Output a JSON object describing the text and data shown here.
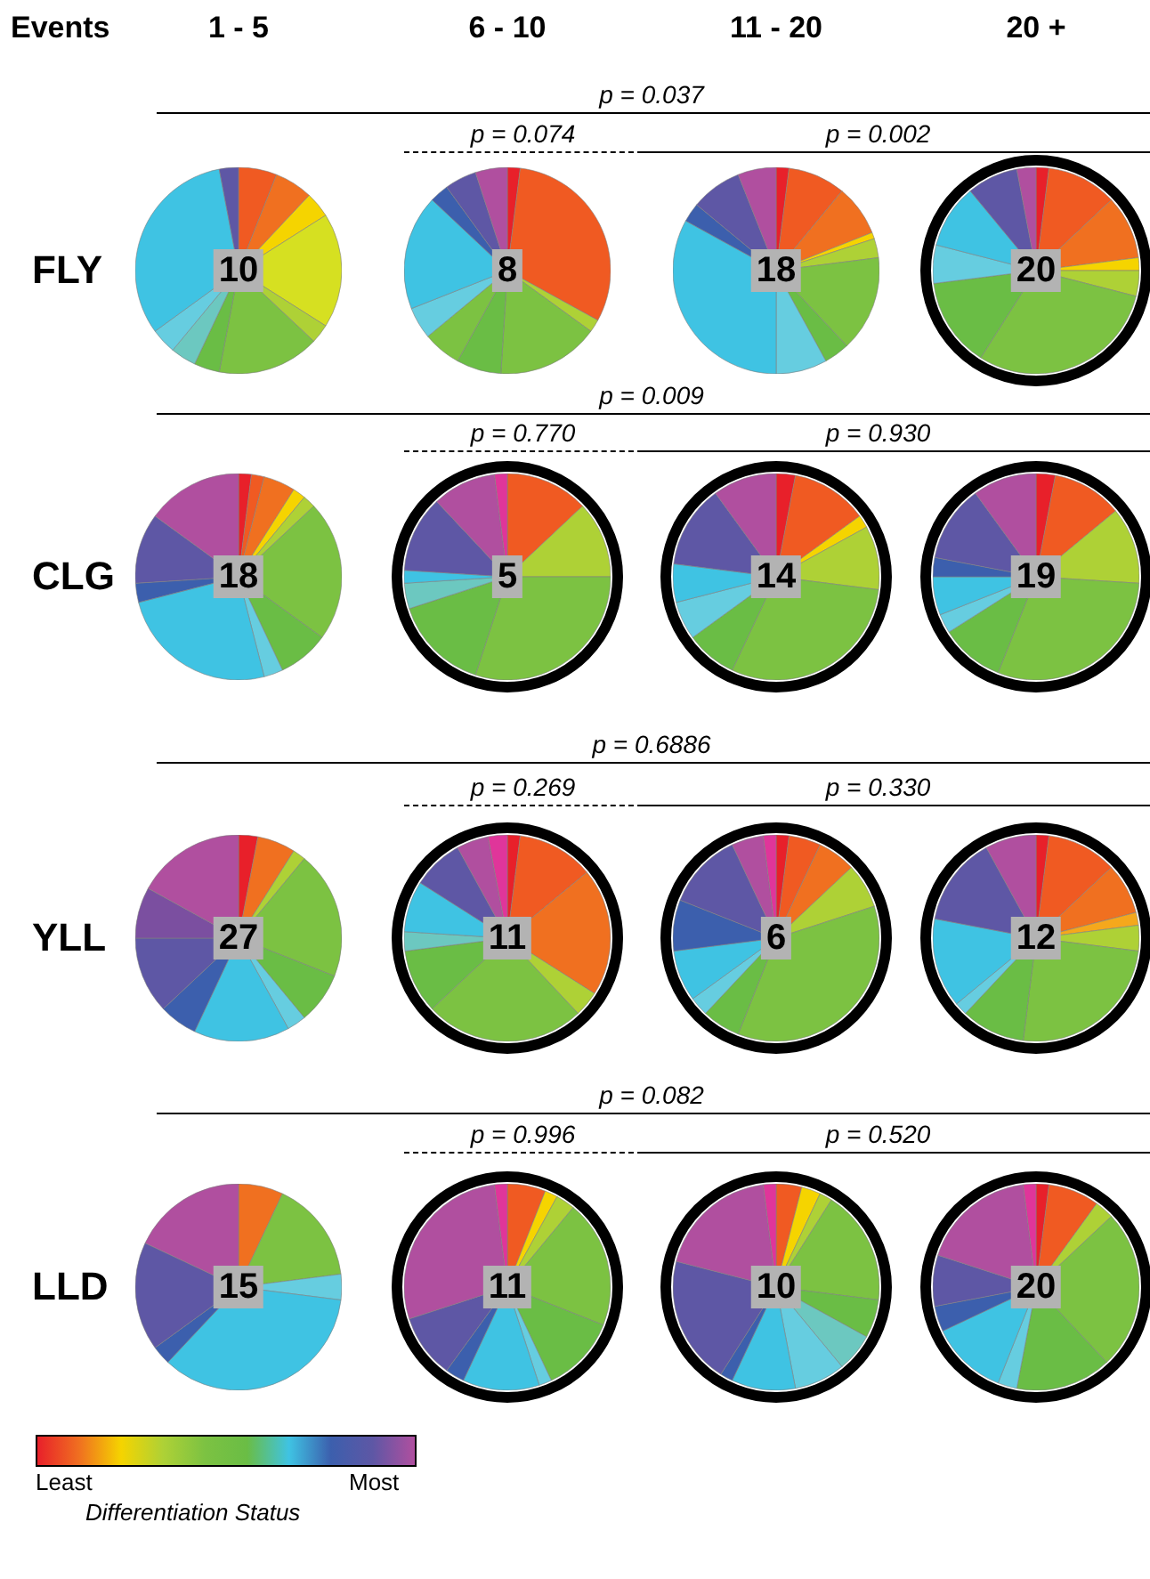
{
  "chart_data": [
    {
      "type": "pie",
      "categories": [
        null,
        null,
        null,
        null,
        null,
        null,
        null,
        null,
        null,
        null,
        null
      ],
      "values": [
        6,
        6,
        4,
        18,
        3,
        16,
        4,
        4,
        4,
        32,
        3
      ],
      "colors": [
        "#f05a22",
        "#f07020",
        "#f5d400",
        "#d6e021",
        "#aed136",
        "#7cc242",
        "#6abd45",
        "#6cc8c0",
        "#66cde0",
        "#3fc3e3",
        "#5e57a5"
      ],
      "annotations": [
        "10"
      ]
    },
    {
      "type": "pie",
      "categories": [
        null,
        null,
        null,
        null,
        null,
        null,
        null,
        null,
        null,
        null,
        null
      ],
      "values": [
        2,
        31,
        2,
        16,
        7,
        6,
        5,
        18,
        3,
        5,
        5
      ],
      "colors": [
        "#e8202a",
        "#f05a22",
        "#aed136",
        "#7cc242",
        "#6abd45",
        "#7cc242",
        "#66cde0",
        "#3fc3e3",
        "#3c5fad",
        "#5e57a5",
        "#b04f9f"
      ],
      "annotations": [
        "8"
      ]
    },
    {
      "type": "pie",
      "categories": [
        null,
        null,
        null,
        null,
        null,
        null,
        null,
        null,
        null,
        null,
        null,
        null
      ],
      "values": [
        2,
        9,
        8,
        1,
        3,
        15,
        4,
        8,
        33,
        3,
        8,
        6
      ],
      "colors": [
        "#e8202a",
        "#f05a22",
        "#f07020",
        "#f5d400",
        "#aed136",
        "#7cc242",
        "#6abd45",
        "#66cde0",
        "#3fc3e3",
        "#3c5fad",
        "#5e57a5",
        "#b04f9f"
      ],
      "annotations": [
        "18"
      ]
    },
    {
      "type": "pie",
      "categories": [
        null,
        null,
        null,
        null,
        null,
        null,
        null,
        null,
        null,
        null,
        null
      ],
      "values": [
        2,
        11,
        10,
        2,
        4,
        30,
        14,
        6,
        10,
        8,
        3
      ],
      "colors": [
        "#e8202a",
        "#f05a22",
        "#f07020",
        "#f5d400",
        "#aed136",
        "#7cc242",
        "#6abd45",
        "#66cde0",
        "#3fc3e3",
        "#5e57a5",
        "#b04f9f"
      ],
      "annotations": [
        "20"
      ]
    },
    {
      "type": "pie",
      "categories": [
        null,
        null,
        null,
        null,
        null,
        null,
        null,
        null,
        null,
        null,
        null,
        null
      ],
      "values": [
        2,
        2,
        5,
        2,
        2,
        22,
        8,
        3,
        25,
        3,
        11,
        15
      ],
      "colors": [
        "#e8202a",
        "#f05a22",
        "#f07020",
        "#f5d400",
        "#aed136",
        "#7cc242",
        "#6abd45",
        "#66cde0",
        "#3fc3e3",
        "#3c5fad",
        "#5e57a5",
        "#b04f9f"
      ],
      "annotations": [
        "18"
      ]
    },
    {
      "type": "pie",
      "categories": [
        null,
        null,
        null,
        null,
        null,
        null,
        null,
        null,
        null
      ],
      "values": [
        13,
        12,
        30,
        15,
        4,
        2,
        12,
        10,
        2
      ],
      "colors": [
        "#f05a22",
        "#aed136",
        "#7cc242",
        "#6abd45",
        "#6cc8c0",
        "#3fc3e3",
        "#5e57a5",
        "#b04f9f",
        "#e0359a"
      ],
      "annotations": [
        "5"
      ]
    },
    {
      "type": "pie",
      "categories": [
        null,
        null,
        null,
        null,
        null,
        null,
        null,
        null,
        null,
        null
      ],
      "values": [
        3,
        12,
        2,
        10,
        30,
        8,
        6,
        6,
        13,
        10
      ],
      "colors": [
        "#e8202a",
        "#f05a22",
        "#f5d400",
        "#aed136",
        "#7cc242",
        "#6abd45",
        "#66cde0",
        "#3fc3e3",
        "#5e57a5",
        "#b04f9f"
      ],
      "annotations": [
        "14"
      ]
    },
    {
      "type": "pie",
      "categories": [
        null,
        null,
        null,
        null,
        null,
        null,
        null,
        null,
        null,
        null
      ],
      "values": [
        3,
        11,
        12,
        30,
        10,
        3,
        6,
        3,
        12,
        10
      ],
      "colors": [
        "#e8202a",
        "#f05a22",
        "#aed136",
        "#7cc242",
        "#6abd45",
        "#66cde0",
        "#3fc3e3",
        "#3c5fad",
        "#5e57a5",
        "#b04f9f"
      ],
      "annotations": [
        "19"
      ]
    },
    {
      "type": "pie",
      "categories": [
        null,
        null,
        null,
        null,
        null,
        null,
        null,
        null,
        null,
        null,
        null
      ],
      "values": [
        3,
        6,
        2,
        20,
        8,
        3,
        15,
        6,
        12,
        8,
        17
      ],
      "colors": [
        "#e8202a",
        "#f07020",
        "#aed136",
        "#7cc242",
        "#6abd45",
        "#66cde0",
        "#3fc3e3",
        "#3c5fad",
        "#5e57a5",
        "#7b4fa0",
        "#b04f9f"
      ],
      "annotations": [
        "27"
      ]
    },
    {
      "type": "pie",
      "categories": [
        null,
        null,
        null,
        null,
        null,
        null,
        null,
        null,
        null,
        null,
        null
      ],
      "values": [
        2,
        12,
        20,
        4,
        25,
        10,
        3,
        8,
        8,
        5,
        3
      ],
      "colors": [
        "#e8202a",
        "#f05a22",
        "#f07020",
        "#aed136",
        "#7cc242",
        "#6abd45",
        "#6cc8c0",
        "#3fc3e3",
        "#5e57a5",
        "#b04f9f",
        "#e0359a"
      ],
      "annotations": [
        "11"
      ]
    },
    {
      "type": "pie",
      "categories": [
        null,
        null,
        null,
        null,
        null,
        null,
        null,
        null,
        null,
        null,
        null,
        null
      ],
      "values": [
        2,
        5,
        6,
        7,
        36,
        6,
        3,
        8,
        8,
        12,
        5,
        2
      ],
      "colors": [
        "#e8202a",
        "#f05a22",
        "#f07020",
        "#aed136",
        "#7cc242",
        "#6abd45",
        "#66cde0",
        "#3fc3e3",
        "#3c5fad",
        "#5e57a5",
        "#b04f9f",
        "#e0359a"
      ],
      "annotations": [
        "6"
      ]
    },
    {
      "type": "pie",
      "categories": [
        null,
        null,
        null,
        null,
        null,
        null,
        null,
        null,
        null,
        null,
        null
      ],
      "values": [
        2,
        11,
        8,
        2,
        4,
        25,
        10,
        2,
        14,
        14,
        8
      ],
      "colors": [
        "#e8202a",
        "#f05a22",
        "#f07020",
        "#f5a81c",
        "#aed136",
        "#7cc242",
        "#6abd45",
        "#66cde0",
        "#3fc3e3",
        "#5e57a5",
        "#b04f9f"
      ],
      "annotations": [
        "12"
      ]
    },
    {
      "type": "pie",
      "categories": [
        null,
        null,
        null,
        null,
        null,
        null,
        null
      ],
      "values": [
        7,
        16,
        4,
        35,
        3,
        17,
        18
      ],
      "colors": [
        "#f07020",
        "#7cc242",
        "#66cde0",
        "#3fc3e3",
        "#3c5fad",
        "#5e57a5",
        "#b04f9f"
      ],
      "annotations": [
        "15"
      ]
    },
    {
      "type": "pie",
      "categories": [
        null,
        null,
        null,
        null,
        null,
        null,
        null,
        null,
        null,
        null,
        null
      ],
      "values": [
        6,
        2,
        3,
        20,
        12,
        2,
        12,
        3,
        10,
        28,
        2
      ],
      "colors": [
        "#f05a22",
        "#f5d400",
        "#aed136",
        "#7cc242",
        "#6abd45",
        "#66cde0",
        "#3fc3e3",
        "#3c5fad",
        "#5e57a5",
        "#b04f9f",
        "#e0359a"
      ],
      "annotations": [
        "11"
      ]
    },
    {
      "type": "pie",
      "categories": [
        null,
        null,
        null,
        null,
        null,
        null,
        null,
        null,
        null,
        null,
        null,
        null
      ],
      "values": [
        4,
        3,
        2,
        18,
        6,
        6,
        8,
        10,
        2,
        20,
        19,
        2
      ],
      "colors": [
        "#f05a22",
        "#f5d400",
        "#aed136",
        "#7cc242",
        "#6abd45",
        "#6cc8c0",
        "#66cde0",
        "#3fc3e3",
        "#3c5fad",
        "#5e57a5",
        "#b04f9f",
        "#e0359a"
      ],
      "annotations": [
        "10"
      ]
    },
    {
      "type": "pie",
      "categories": [
        null,
        null,
        null,
        null,
        null,
        null,
        null,
        null,
        null,
        null,
        null
      ],
      "values": [
        2,
        8,
        3,
        25,
        15,
        3,
        12,
        4,
        8,
        18,
        2
      ],
      "colors": [
        "#e8202a",
        "#f05a22",
        "#aed136",
        "#7cc242",
        "#6abd45",
        "#66cde0",
        "#3fc3e3",
        "#3c5fad",
        "#5e57a5",
        "#b04f9f",
        "#e0359a"
      ],
      "annotations": [
        "20"
      ]
    },
    {
      "type": "other",
      "title": "Events",
      "clabel": "Differentiation Status",
      "annotations": [
        "1 - 5",
        "6 - 10",
        "11 - 20",
        "20 +",
        "FLY",
        "CLG",
        "YLL",
        "LLD",
        "p = 0.037",
        "p = 0.074",
        "p = 0.002",
        "p = 0.009",
        "p = 0.770",
        "p = 0.930",
        "p = 0.6886",
        "p = 0.269",
        "p = 0.330",
        "p = 0.082",
        "p = 0.996",
        "p = 0.520",
        "Least",
        "Most"
      ]
    }
  ]
}
